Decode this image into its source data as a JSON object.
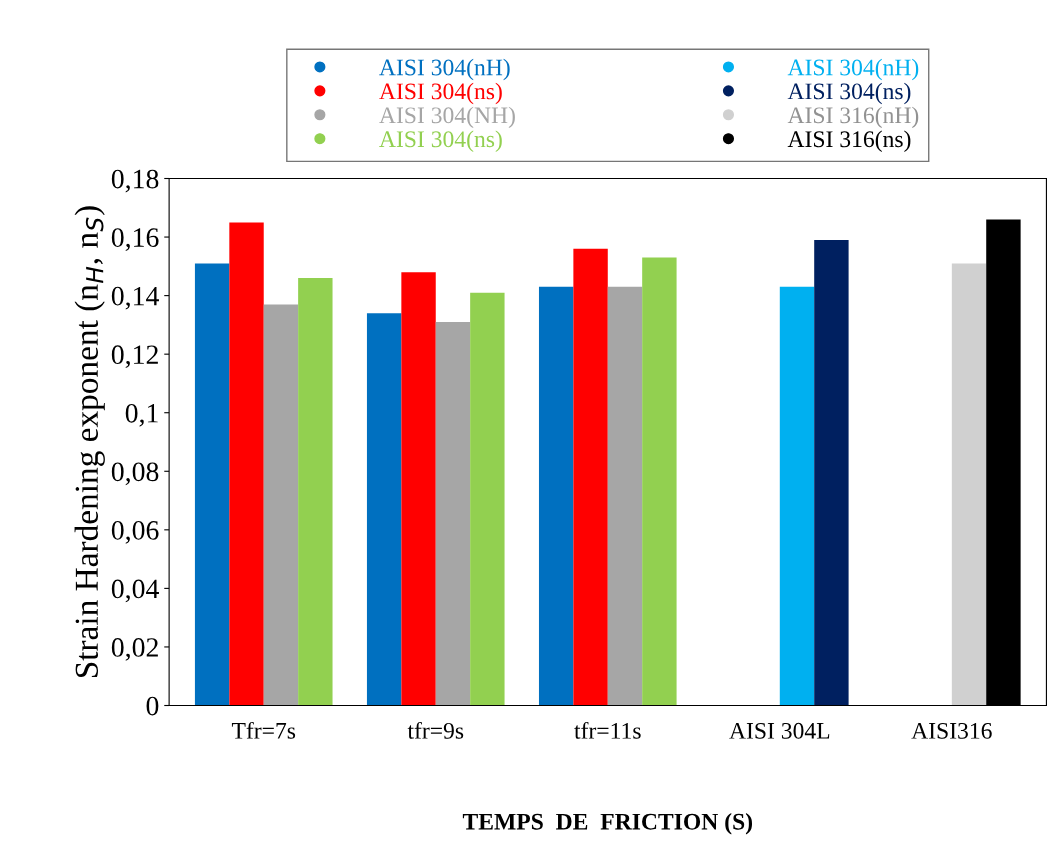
{
  "chart_data": {
    "type": "bar",
    "xlabel": "TEMPS  DE  FRICTION (S)",
    "ylabel": "Strain Hardening exponent (n$_{H}$, n$_{S}$)",
    "categories": [
      "Tfr=7s",
      "tfr=9s",
      "tfr=11s",
      "AISI 304L",
      "AISI316"
    ],
    "series": [
      {
        "name": "AISI 304(nH)",
        "color": "#0070c0",
        "values": [
          0.151,
          0.134,
          0.143,
          null,
          null
        ]
      },
      {
        "name": "AISI 304(ns)",
        "color": "#ff0000",
        "values": [
          0.165,
          0.148,
          0.156,
          null,
          null
        ]
      },
      {
        "name": "AISI 304(NH)",
        "color": "#a6a6a6",
        "values": [
          0.137,
          0.131,
          0.143,
          null,
          null
        ]
      },
      {
        "name": "AISI 304(ns)",
        "color": "#92d050",
        "values": [
          0.146,
          0.141,
          0.153,
          null,
          null
        ]
      },
      {
        "name": "AISI 304(nH)",
        "color": "#00b0f0",
        "values": [
          null,
          null,
          null,
          0.143,
          null
        ]
      },
      {
        "name": "AISI 304(ns)",
        "color": "#002060",
        "values": [
          null,
          null,
          null,
          0.159,
          null
        ]
      },
      {
        "name": "AISI 316(nH)",
        "color": "#d0d0d0",
        "values": [
          null,
          null,
          null,
          null,
          0.151
        ]
      },
      {
        "name": "AISI 316(ns)",
        "color": "#000000",
        "values": [
          null,
          null,
          null,
          null,
          0.166
        ]
      }
    ],
    "ylim": [
      0,
      0.18
    ],
    "yticks": [
      0,
      {
        "value": 0.02,
        "label": "0,02"
      },
      {
        "value": 0.04,
        "label": "0,04"
      },
      {
        "value": 0.06,
        "label": "0,06"
      },
      {
        "value": 0.08,
        "label": "0,08"
      },
      {
        "value": 0.1,
        "label": "0,1"
      },
      {
        "value": 0.12,
        "label": "0,12"
      },
      {
        "value": 0.14,
        "label": "0,14"
      },
      {
        "value": 0.16,
        "label": "0,16"
      },
      {
        "value": 0.18,
        "label": "0,18"
      }
    ],
    "grid": false,
    "legend": "top"
  }
}
